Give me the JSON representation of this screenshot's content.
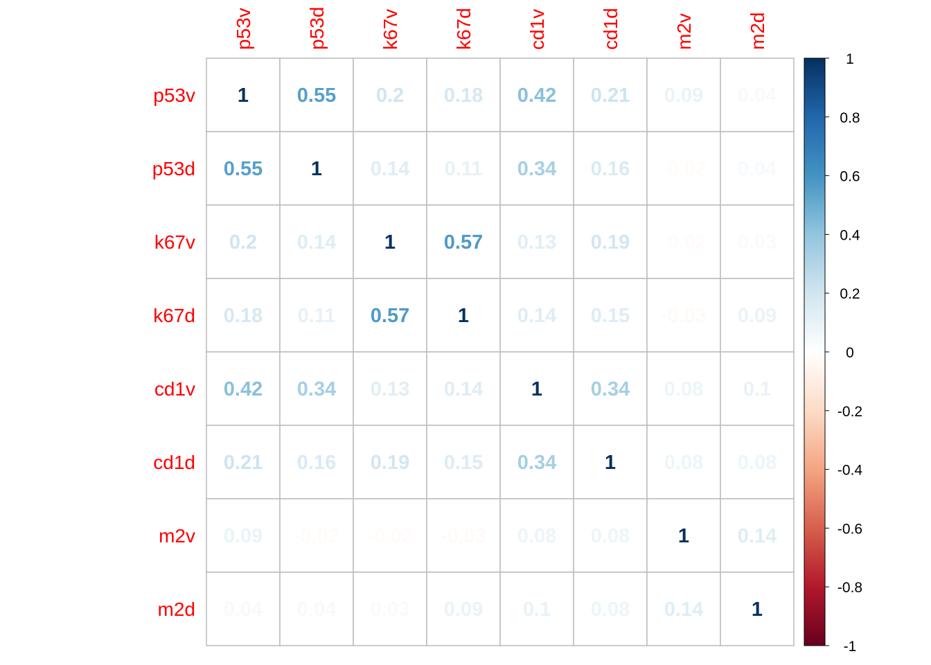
{
  "chart_data": {
    "type": "heatmap",
    "variables": [
      "p53v",
      "p53d",
      "k67v",
      "k67d",
      "cd1v",
      "cd1d",
      "m2v",
      "m2d"
    ],
    "matrix": [
      [
        1,
        0.55,
        0.2,
        0.18,
        0.42,
        0.21,
        0.09,
        0.04
      ],
      [
        0.55,
        1,
        0.14,
        0.11,
        0.34,
        0.16,
        -0.02,
        0.04
      ],
      [
        0.2,
        0.14,
        1,
        0.57,
        0.13,
        0.19,
        -0.02,
        0.03
      ],
      [
        0.18,
        0.11,
        0.57,
        1,
        0.14,
        0.15,
        -0.03,
        0.09
      ],
      [
        0.42,
        0.34,
        0.13,
        0.14,
        1,
        0.34,
        0.08,
        0.1
      ],
      [
        0.21,
        0.16,
        0.19,
        0.15,
        0.34,
        1,
        0.08,
        0.08
      ],
      [
        0.09,
        -0.02,
        -0.02,
        -0.03,
        0.08,
        0.08,
        1,
        0.14
      ],
      [
        0.04,
        0.04,
        0.03,
        0.09,
        0.1,
        0.08,
        0.14,
        1
      ]
    ],
    "matrix_labels": [
      [
        "1",
        "0.55",
        "0.2",
        "0.18",
        "0.42",
        "0.21",
        "0.09",
        "0.04"
      ],
      [
        "0.55",
        "1",
        "0.14",
        "0.11",
        "0.34",
        "0.16",
        "-0.02",
        "0.04"
      ],
      [
        "0.2",
        "0.14",
        "1",
        "0.57",
        "0.13",
        "0.19",
        "-0.02",
        "0.03"
      ],
      [
        "0.18",
        "0.11",
        "0.57",
        "1",
        "0.14",
        "0.15",
        "-0.03",
        "0.09"
      ],
      [
        "0.42",
        "0.34",
        "0.13",
        "0.14",
        "1",
        "0.34",
        "0.08",
        "0.1"
      ],
      [
        "0.21",
        "0.16",
        "0.19",
        "0.15",
        "0.34",
        "1",
        "0.08",
        "0.08"
      ],
      [
        "0.09",
        "-0.02",
        "-0.02",
        "-0.03",
        "0.08",
        "0.08",
        "1",
        "0.14"
      ],
      [
        "0.04",
        "0.04",
        "0.03",
        "0.09",
        "0.1",
        "0.08",
        "0.14",
        "1"
      ]
    ],
    "value_range": [
      -1,
      1
    ],
    "legend_ticks": [
      1,
      0.8,
      0.6,
      0.4,
      0.2,
      0,
      -0.2,
      -0.4,
      -0.6,
      -0.8,
      -1
    ],
    "legend_tick_labels": [
      "1",
      "0.8",
      "0.6",
      "0.4",
      "0.2",
      "0",
      "-0.2",
      "-0.4",
      "-0.6",
      "-0.8",
      "-1"
    ],
    "legend_placement": "right",
    "colors": {
      "label": "#ff0000",
      "grid": "#bebebe",
      "scale": [
        "#67001f",
        "#b2182b",
        "#d6604d",
        "#f4a582",
        "#fddbc7",
        "#ffffff",
        "#d1e5f0",
        "#92c5de",
        "#4393c3",
        "#2166ac",
        "#053061"
      ]
    }
  }
}
